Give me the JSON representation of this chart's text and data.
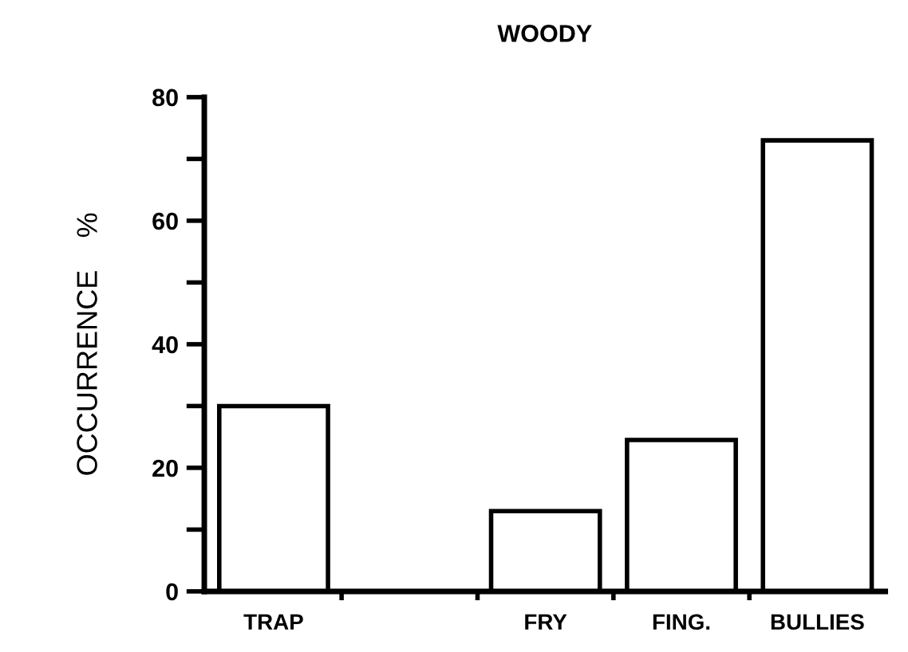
{
  "chart_data": {
    "type": "bar",
    "title": "WOODY",
    "ylabel": "OCCURRENCE    %",
    "categories": [
      "TRAP",
      null,
      "FRY",
      "FING.",
      "BULLIES"
    ],
    "values": [
      30,
      null,
      13,
      24.5,
      73
    ],
    "color": "#ffffff",
    "ylim": [
      0,
      80
    ],
    "yticks": [
      0,
      {
        "value": 10,
        "label": null
      },
      20,
      {
        "value": 30,
        "label": null
      },
      40,
      {
        "value": 50,
        "label": null
      },
      60,
      {
        "value": 70,
        "label": null
      },
      80
    ],
    "grid": false,
    "legend": false
  }
}
